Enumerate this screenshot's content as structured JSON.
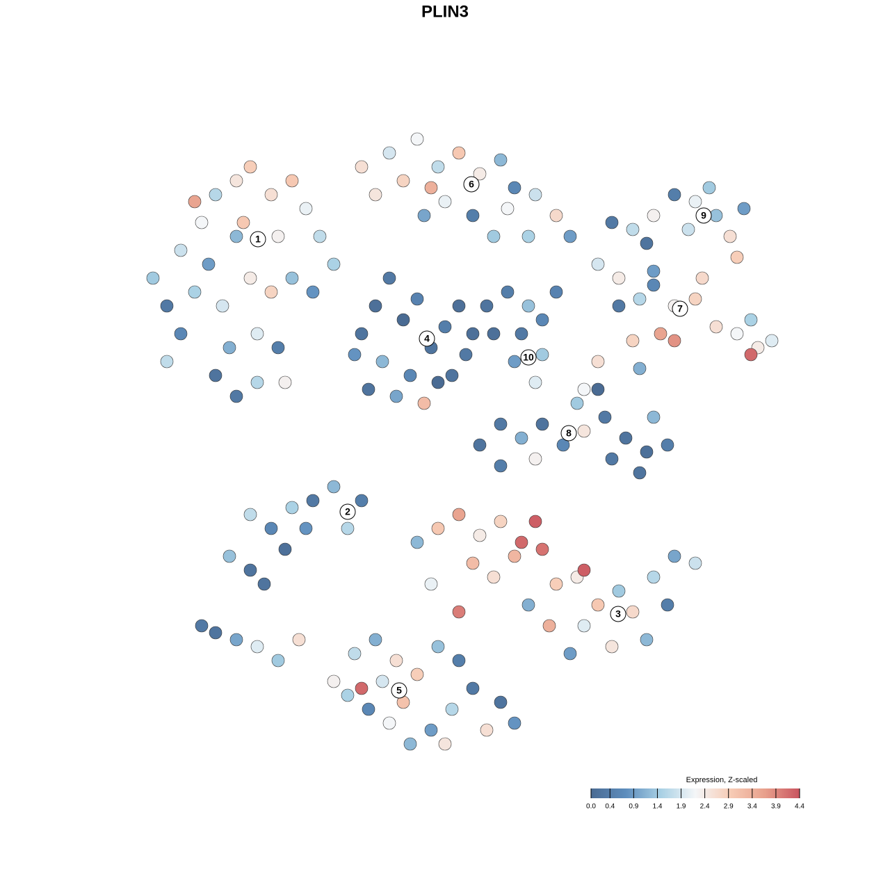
{
  "chart_data": {
    "type": "scatter",
    "title": "PLIN3",
    "xlim": [
      -45,
      50
    ],
    "ylim": [
      -46,
      46
    ],
    "colorbar": {
      "title": "Expression, Z-scaled",
      "lim": [
        0,
        4.4
      ],
      "ticks": [
        {
          "value": 0,
          "label": "0.0"
        },
        0.4,
        0.9,
        1.4,
        1.9,
        2.4,
        2.9,
        3.4,
        3.9,
        4.4
      ],
      "colors": [
        "#4a6b93",
        "#5d8dbd",
        "#a8d0e4",
        "#f4f6f8",
        "#f7ccb6",
        "#e8a08c",
        "#c9545f"
      ]
    },
    "series": [
      {
        "name": "1",
        "label_x": -26.9,
        "label_y": 29.6,
        "x": [
          -40,
          -42,
          -38,
          -35,
          -33,
          -30,
          -28,
          -25,
          -22,
          -20,
          -18,
          -24,
          -30,
          -34,
          -36,
          -32,
          -28,
          -25,
          -22,
          -27,
          -31,
          -24,
          -33,
          -30,
          -27,
          -23,
          -19,
          -16,
          -36,
          -29,
          -38,
          -40
        ],
        "y": [
          20,
          24,
          28,
          32,
          36,
          38,
          40,
          36,
          38,
          34,
          30,
          30,
          30,
          26,
          22,
          20,
          24,
          22,
          24,
          16,
          14,
          14,
          10,
          7,
          9,
          9,
          22,
          26,
          35,
          32,
          16,
          12
        ],
        "values": [
          0.3,
          1.4,
          1.8,
          2.2,
          1.6,
          2.5,
          2.9,
          2.6,
          3.0,
          2.1,
          1.7,
          2.3,
          1.2,
          0.9,
          1.5,
          1.9,
          2.4,
          2.8,
          1.3,
          2.0,
          1.1,
          0.4,
          0.2,
          0.3,
          1.6,
          2.3,
          0.8,
          1.5,
          3.6,
          3.0,
          0.6,
          1.7
        ]
      },
      {
        "name": "6",
        "label_x": 3.8,
        "label_y": 37.5,
        "x": [
          -12,
          -8,
          -4,
          -6,
          -1,
          2,
          5,
          8,
          10,
          13,
          16,
          18,
          0,
          -3,
          4,
          7,
          -10,
          -2,
          9,
          12
        ],
        "y": [
          40,
          42,
          44,
          38,
          40,
          42,
          39,
          41,
          37,
          36,
          33,
          30,
          35,
          33,
          33,
          30,
          36,
          37,
          34,
          30
        ],
        "values": [
          2.6,
          1.9,
          2.2,
          2.8,
          1.7,
          3.0,
          2.4,
          1.2,
          0.6,
          1.8,
          2.7,
          0.9,
          2.1,
          1.0,
          0.4,
          1.4,
          2.5,
          3.4,
          2.2,
          1.5
        ]
      },
      {
        "name": "4",
        "label_x": -2.6,
        "label_y": 15.3,
        "x": [
          -12,
          -10,
          -8,
          -6,
          -4,
          -2,
          0,
          2,
          3,
          -1,
          -5,
          -9,
          -11,
          -7,
          1,
          -3,
          -13,
          4
        ],
        "y": [
          16,
          20,
          24,
          18,
          21,
          14,
          17,
          20,
          13,
          9,
          10,
          12,
          8,
          7,
          10,
          6,
          13,
          16
        ],
        "values": [
          0.2,
          0.1,
          0.3,
          0.0,
          0.5,
          0.2,
          0.4,
          0.1,
          0.3,
          0.0,
          0.6,
          1.2,
          0.2,
          1.0,
          0.2,
          3.2,
          0.8,
          0.1
        ]
      },
      {
        "name": "10",
        "label_x": 12,
        "label_y": 12.6,
        "x": [
          6,
          9,
          12,
          14,
          11,
          14,
          10,
          13,
          7,
          16
        ],
        "y": [
          20,
          22,
          20,
          18,
          16,
          13,
          12,
          9,
          16,
          22
        ],
        "values": [
          0.2,
          0.4,
          1.3,
          0.6,
          0.3,
          1.4,
          0.9,
          2.0,
          0.1,
          0.5
        ]
      },
      {
        "name": "7",
        "label_x": 33.8,
        "label_y": 19.6,
        "x": [
          22,
          25,
          28,
          30,
          33,
          36,
          39,
          42,
          45,
          47,
          44,
          37,
          30,
          25,
          31,
          27,
          22,
          28,
          20,
          33,
          44
        ],
        "y": [
          26,
          24,
          21,
          23,
          20,
          21,
          17,
          16,
          14,
          15,
          18,
          24,
          25,
          20,
          16,
          15,
          12,
          11,
          8,
          15,
          13
        ],
        "values": [
          1.9,
          2.4,
          1.6,
          0.6,
          2.3,
          2.8,
          2.6,
          2.2,
          2.4,
          2.0,
          1.5,
          2.7,
          0.9,
          0.3,
          3.6,
          2.8,
          2.6,
          1.1,
          2.2,
          3.8,
          4.2
        ]
      },
      {
        "name": "9",
        "label_x": 37.2,
        "label_y": 33,
        "x": [
          24,
          27,
          30,
          33,
          36,
          39,
          41,
          43,
          35,
          29,
          38,
          42
        ],
        "y": [
          32,
          31,
          33,
          36,
          35,
          33,
          30,
          34,
          31,
          29,
          37,
          27
        ],
        "values": [
          0.3,
          1.7,
          2.3,
          0.4,
          2.1,
          1.3,
          2.6,
          0.9,
          1.8,
          0.2,
          1.4,
          2.9
        ]
      },
      {
        "name": "8",
        "label_x": 17.8,
        "label_y": 1.7,
        "x": [
          5,
          8,
          11,
          14,
          17,
          20,
          23,
          26,
          29,
          32,
          28,
          24,
          19,
          22,
          30,
          13,
          8
        ],
        "y": [
          0,
          3,
          1,
          3,
          0,
          2,
          4,
          1,
          -1,
          0,
          -4,
          -2,
          6,
          8,
          4,
          -2,
          -3
        ],
        "values": [
          0.2,
          0.3,
          1.1,
          0.2,
          0.6,
          2.5,
          0.3,
          0.2,
          0.1,
          0.4,
          0.2,
          0.3,
          1.4,
          0.0,
          1.2,
          2.3,
          0.4
        ]
      },
      {
        "name": "2",
        "label_x": -14,
        "label_y": -9.6,
        "x": [
          -31,
          -28,
          -25,
          -23,
          -26,
          -22,
          -19,
          -16,
          -14,
          -12,
          -20,
          -28,
          -33,
          -30,
          -27,
          -24,
          -21,
          -35
        ],
        "y": [
          -16,
          -18,
          -12,
          -15,
          -20,
          -9,
          -8,
          -6,
          -12,
          -8,
          -12,
          -10,
          -27,
          -28,
          -29,
          -31,
          -28,
          -26
        ],
        "values": [
          1.3,
          0.2,
          0.6,
          0.1,
          0.2,
          1.5,
          0.3,
          1.2,
          1.6,
          0.4,
          0.8,
          1.7,
          0.2,
          1.0,
          2.0,
          1.4,
          2.6,
          0.3
        ]
      },
      {
        "name": "3",
        "label_x": 24.9,
        "label_y": -24.3,
        "x": [
          -4,
          -1,
          2,
          5,
          8,
          11,
          13,
          10,
          14,
          7,
          4,
          16,
          19,
          22,
          20,
          25,
          27,
          30,
          33,
          36,
          29,
          24,
          18,
          15,
          12,
          2,
          20,
          -2,
          32
        ],
        "y": [
          -14,
          -12,
          -10,
          -13,
          -11,
          -14,
          -11,
          -16,
          -15,
          -19,
          -17,
          -20,
          -19,
          -23,
          -26,
          -21,
          -24,
          -19,
          -16,
          -17,
          -28,
          -29,
          -30,
          -26,
          -23,
          -24,
          -18,
          -20,
          -23
        ],
        "values": [
          1.2,
          3.0,
          3.6,
          2.4,
          2.8,
          4.2,
          4.3,
          3.3,
          4.1,
          2.6,
          3.2,
          2.9,
          2.4,
          3.0,
          2.0,
          1.4,
          2.7,
          1.6,
          1.0,
          1.8,
          1.2,
          2.5,
          0.9,
          3.4,
          1.1,
          4.0,
          4.3,
          2.1,
          0.4
        ]
      },
      {
        "name": "5",
        "label_x": -6.6,
        "label_y": -35.3,
        "x": [
          -16,
          -13,
          -10,
          -7,
          -4,
          -1,
          2,
          4,
          1,
          -2,
          -5,
          -8,
          -11,
          -14,
          -12,
          -6,
          0,
          8,
          10,
          6,
          -9
        ],
        "y": [
          -34,
          -30,
          -28,
          -31,
          -33,
          -29,
          -31,
          -35,
          -38,
          -41,
          -43,
          -40,
          -38,
          -36,
          -35,
          -37,
          -43,
          -37,
          -40,
          -41,
          -34
        ],
        "values": [
          2.3,
          1.7,
          1.1,
          2.6,
          2.9,
          1.3,
          0.4,
          0.3,
          1.6,
          0.9,
          1.2,
          2.2,
          0.6,
          1.5,
          4.2,
          3.1,
          2.5,
          0.2,
          0.8,
          2.6,
          1.9
        ]
      }
    ]
  }
}
